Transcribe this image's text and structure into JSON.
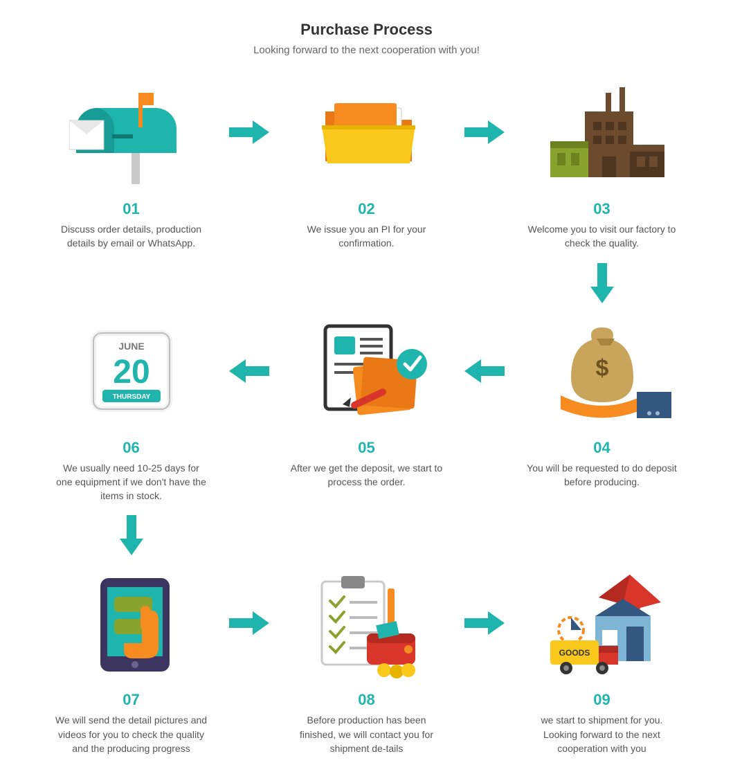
{
  "colors": {
    "teal": "#1fb5ad",
    "teal_dark": "#169c95",
    "orange": "#f68b1f",
    "orange_dark": "#e97817",
    "yellow": "#f8c81c",
    "yellow_dark": "#e6b400",
    "brown": "#6b4a2e",
    "brown_dark": "#4d3520",
    "green_olive": "#8aa22e",
    "green_olive_dark": "#6e821f",
    "grey_light": "#e8e8e8",
    "grey_mid": "#c9c9c9",
    "grey_dark": "#555555",
    "blue_navy": "#34577f",
    "red": "#d8362a",
    "red_dark": "#b52a20",
    "blue_light": "#7fb6d6",
    "white": "#ffffff",
    "text": "#555555",
    "num_color": "#1fb5ad"
  },
  "title": "Purchase Process",
  "subtitle": "Looking forward to the next cooperation with you!",
  "steps": {
    "s1": {
      "num": "01",
      "desc": "Discuss order details, production details by email or WhatsApp."
    },
    "s2": {
      "num": "02",
      "desc": "We issue you an PI for your confirmation."
    },
    "s3": {
      "num": "03",
      "desc": "Welcome you to visit our factory to check the quality."
    },
    "s4": {
      "num": "04",
      "desc": "You will be requested to do deposit before producing."
    },
    "s5": {
      "num": "05",
      "desc": "After we get the deposit, we start to process the order."
    },
    "s6": {
      "num": "06",
      "desc": "We usually need 10-25 days for one equipment if we don't have the items in stock."
    },
    "s7": {
      "num": "07",
      "desc": "We will send the detail pictures and videos for you to check the quality and the producing progress"
    },
    "s8": {
      "num": "08",
      "desc": "Before production has been finished, we will contact you for shipment de-tails"
    },
    "s9": {
      "num": "09",
      "desc": "we start to shipment for you. Looking forward to the next cooperation with you"
    }
  },
  "calendar": {
    "month": "JUNE",
    "day": "20",
    "weekday": "THURSDAY"
  },
  "goods_label": "GOODS",
  "arrow": {
    "color": "#1fb5ad",
    "width": 58,
    "height": 34
  }
}
